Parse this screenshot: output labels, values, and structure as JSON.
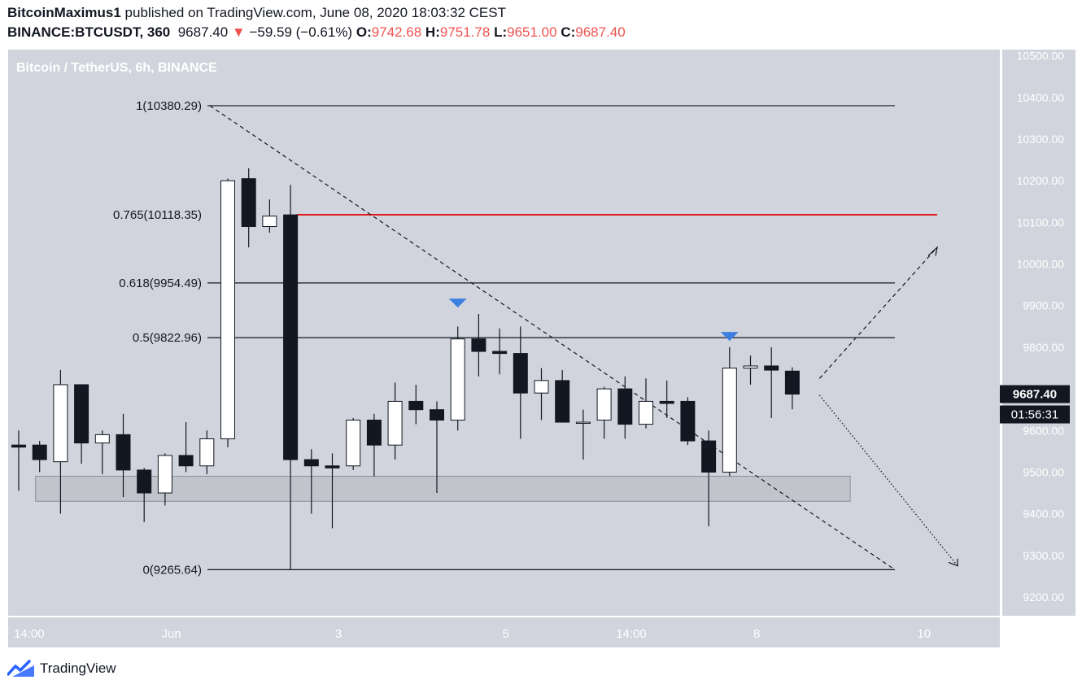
{
  "header": {
    "author": "BitcoinMaximus1",
    "published_text": "published on TradingView.com, June 08, 2020 18:03:32 CEST",
    "symbol": "BINANCE:BTCUSDT, 360",
    "last": "9687.40",
    "change_arrow": "▼",
    "change": "−59.59 (−0.61%)",
    "o_label": "O:",
    "o": "9742.68",
    "h_label": "H:",
    "h": "9751.78",
    "l_label": "L:",
    "l": "9651.00",
    "c_label": "C:",
    "c": "9687.40"
  },
  "footer": {
    "brand": "TradingView"
  },
  "colors": {
    "plot_bg": "#d1d4dc",
    "axis_bg": "#d1d4dc",
    "up_body": "#ffffff",
    "down_body": "#131722",
    "wick": "#131722",
    "red_line": "#e31a1c",
    "marker": "#3c7fe0",
    "price_tag": "#131722"
  },
  "chart_data": {
    "type": "candlestick",
    "title": "Bitcoin / TetherUS, 6h, BINANCE",
    "ylim": [
      9155,
      10515
    ],
    "yticks": [
      9200,
      9300,
      9400,
      9500,
      9600,
      9700,
      9800,
      9900,
      10000,
      10100,
      10200,
      10300,
      10400,
      10500
    ],
    "x_labels": [
      {
        "label": "14:00",
        "bar": 0.5
      },
      {
        "label": "Jun",
        "bar": 7.3
      },
      {
        "label": "3",
        "bar": 15.3
      },
      {
        "label": "5",
        "bar": 23.3
      },
      {
        "label": "14:00",
        "bar": 29.3
      },
      {
        "label": "8",
        "bar": 35.3
      },
      {
        "label": "10",
        "bar": 43.3
      }
    ],
    "candles": [
      {
        "o": 9565,
        "h": 9600,
        "l": 9455,
        "c": 9560
      },
      {
        "o": 9565,
        "h": 9575,
        "l": 9500,
        "c": 9530
      },
      {
        "o": 9525,
        "h": 9745,
        "l": 9400,
        "c": 9710
      },
      {
        "o": 9710,
        "h": 9710,
        "l": 9520,
        "c": 9570
      },
      {
        "o": 9570,
        "h": 9600,
        "l": 9495,
        "c": 9590
      },
      {
        "o": 9590,
        "h": 9640,
        "l": 9440,
        "c": 9505
      },
      {
        "o": 9505,
        "h": 9510,
        "l": 9380,
        "c": 9450
      },
      {
        "o": 9450,
        "h": 9545,
        "l": 9420,
        "c": 9540
      },
      {
        "o": 9540,
        "h": 9620,
        "l": 9500,
        "c": 9515
      },
      {
        "o": 9515,
        "h": 9600,
        "l": 9495,
        "c": 9580
      },
      {
        "o": 9580,
        "h": 10205,
        "l": 9560,
        "c": 10200
      },
      {
        "o": 10205,
        "h": 10230,
        "l": 10040,
        "c": 10090
      },
      {
        "o": 10090,
        "h": 10155,
        "l": 10075,
        "c": 10115
      },
      {
        "o": 10118,
        "h": 10190,
        "l": 9265,
        "c": 9530
      },
      {
        "o": 9530,
        "h": 9555,
        "l": 9400,
        "c": 9515
      },
      {
        "o": 9515,
        "h": 9545,
        "l": 9365,
        "c": 9510
      },
      {
        "o": 9515,
        "h": 9630,
        "l": 9505,
        "c": 9625
      },
      {
        "o": 9625,
        "h": 9640,
        "l": 9490,
        "c": 9565
      },
      {
        "o": 9565,
        "h": 9715,
        "l": 9530,
        "c": 9670
      },
      {
        "o": 9670,
        "h": 9710,
        "l": 9615,
        "c": 9650
      },
      {
        "o": 9650,
        "h": 9670,
        "l": 9450,
        "c": 9625
      },
      {
        "o": 9625,
        "h": 9850,
        "l": 9600,
        "c": 9820
      },
      {
        "o": 9820,
        "h": 9880,
        "l": 9730,
        "c": 9790
      },
      {
        "o": 9790,
        "h": 9845,
        "l": 9735,
        "c": 9785
      },
      {
        "o": 9785,
        "h": 9850,
        "l": 9580,
        "c": 9690
      },
      {
        "o": 9690,
        "h": 9750,
        "l": 9625,
        "c": 9720
      },
      {
        "o": 9720,
        "h": 9745,
        "l": 9620,
        "c": 9620
      },
      {
        "o": 9620,
        "h": 9650,
        "l": 9530,
        "c": 9620
      },
      {
        "o": 9625,
        "h": 9705,
        "l": 9580,
        "c": 9700
      },
      {
        "o": 9700,
        "h": 9730,
        "l": 9580,
        "c": 9615
      },
      {
        "o": 9615,
        "h": 9725,
        "l": 9605,
        "c": 9670
      },
      {
        "o": 9670,
        "h": 9720,
        "l": 9630,
        "c": 9665
      },
      {
        "o": 9670,
        "h": 9680,
        "l": 9565,
        "c": 9575
      },
      {
        "o": 9575,
        "h": 9600,
        "l": 9370,
        "c": 9500
      },
      {
        "o": 9500,
        "h": 9800,
        "l": 9490,
        "c": 9750
      },
      {
        "o": 9750,
        "h": 9780,
        "l": 9710,
        "c": 9755
      },
      {
        "o": 9755,
        "h": 9800,
        "l": 9630,
        "c": 9745
      },
      {
        "o": 9742.68,
        "h": 9751.78,
        "l": 9651.0,
        "c": 9687.4
      }
    ],
    "fib_levels": [
      {
        "ratio": "1",
        "price": 10380.29,
        "label": "1(10380.29)"
      },
      {
        "ratio": "0.765",
        "price": 10118.35,
        "label": "0.765(10118.35)"
      },
      {
        "ratio": "0.618",
        "price": 9954.49,
        "label": "0.618(9954.49)"
      },
      {
        "ratio": "0.5",
        "price": 9822.96,
        "label": "0.5(9822.96)"
      },
      {
        "ratio": "0",
        "price": 9265.64,
        "label": "0(9265.64)"
      }
    ],
    "support_zone": [
      9430,
      9490
    ],
    "resistance_markers": [
      {
        "bar": 21,
        "price": 9905
      },
      {
        "bar": 34,
        "price": 9825
      }
    ],
    "last_price_label": "9687.40",
    "countdown_label": "01:56:31"
  }
}
